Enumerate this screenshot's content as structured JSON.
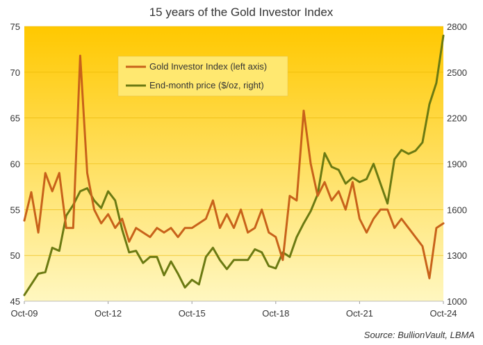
{
  "chart_data": {
    "type": "line",
    "title": "15 years of the Gold Investor Index",
    "source": "Source: BullionVault, LBMA",
    "colors": {
      "index": "#c8621a",
      "price": "#6b7a12",
      "bg_top": "#ffc800",
      "bg_bottom": "#fff7c0"
    },
    "x_ticks": [
      "Oct-09",
      "Oct-12",
      "Oct-15",
      "Oct-18",
      "Oct-21",
      "Oct-24"
    ],
    "y_left": {
      "ylim": [
        45,
        75
      ],
      "ticks": [
        45,
        50,
        55,
        60,
        65,
        70,
        75
      ]
    },
    "y_right": {
      "ylim": [
        1000,
        2800
      ],
      "ticks": [
        1000,
        1300,
        1600,
        1900,
        2200,
        2500,
        2800
      ]
    },
    "legend_position": "top-center",
    "series": [
      {
        "name": "Gold Investor Index (left axis)",
        "axis": "left",
        "x": [
          "2009-10",
          "2010-01",
          "2010-04",
          "2010-07",
          "2010-10",
          "2011-01",
          "2011-04",
          "2011-07",
          "2011-10",
          "2012-01",
          "2012-04",
          "2012-07",
          "2012-10",
          "2013-01",
          "2013-04",
          "2013-07",
          "2013-10",
          "2014-01",
          "2014-04",
          "2014-07",
          "2014-10",
          "2015-01",
          "2015-04",
          "2015-07",
          "2015-10",
          "2016-01",
          "2016-04",
          "2016-07",
          "2016-10",
          "2017-01",
          "2017-04",
          "2017-07",
          "2017-10",
          "2018-01",
          "2018-04",
          "2018-07",
          "2018-10",
          "2019-01",
          "2019-04",
          "2019-07",
          "2019-10",
          "2020-01",
          "2020-04",
          "2020-07",
          "2020-10",
          "2021-01",
          "2021-04",
          "2021-07",
          "2021-10",
          "2022-01",
          "2022-04",
          "2022-07",
          "2022-10",
          "2023-01",
          "2023-04",
          "2023-07",
          "2023-10",
          "2024-01",
          "2024-04",
          "2024-07",
          "2024-10"
        ],
        "values": [
          53.8,
          56.9,
          52.5,
          59,
          57,
          59,
          53,
          53,
          71.8,
          59,
          55,
          53.5,
          54.5,
          53,
          54,
          51.5,
          53,
          52.5,
          52,
          53,
          52.5,
          53,
          52,
          53,
          53,
          53.5,
          54,
          56,
          53,
          54.5,
          53,
          55,
          52.5,
          53,
          55,
          52.5,
          52,
          49.5,
          56.5,
          56,
          65.8,
          60,
          56.5,
          58,
          56,
          57,
          55,
          58,
          54,
          52.5,
          54,
          55,
          55,
          53,
          54,
          53,
          52,
          51,
          47.5,
          53,
          53.5
        ]
      },
      {
        "name": "End-month price ($/oz, right)",
        "axis": "right",
        "x": [
          "2009-10",
          "2010-01",
          "2010-04",
          "2010-07",
          "2010-10",
          "2011-01",
          "2011-04",
          "2011-07",
          "2011-10",
          "2012-01",
          "2012-04",
          "2012-07",
          "2012-10",
          "2013-01",
          "2013-04",
          "2013-07",
          "2013-10",
          "2014-01",
          "2014-04",
          "2014-07",
          "2014-10",
          "2015-01",
          "2015-04",
          "2015-07",
          "2015-10",
          "2016-01",
          "2016-04",
          "2016-07",
          "2016-10",
          "2017-01",
          "2017-04",
          "2017-07",
          "2017-10",
          "2018-01",
          "2018-04",
          "2018-07",
          "2018-10",
          "2019-01",
          "2019-04",
          "2019-07",
          "2019-10",
          "2020-01",
          "2020-04",
          "2020-07",
          "2020-10",
          "2021-01",
          "2021-04",
          "2021-07",
          "2021-10",
          "2022-01",
          "2022-04",
          "2022-07",
          "2022-10",
          "2023-01",
          "2023-04",
          "2023-07",
          "2023-10",
          "2024-01",
          "2024-04",
          "2024-07",
          "2024-10"
        ],
        "values": [
          1040,
          1110,
          1180,
          1190,
          1350,
          1330,
          1560,
          1630,
          1720,
          1740,
          1660,
          1610,
          1720,
          1660,
          1470,
          1320,
          1330,
          1250,
          1290,
          1290,
          1170,
          1260,
          1180,
          1090,
          1140,
          1110,
          1290,
          1350,
          1270,
          1210,
          1270,
          1270,
          1270,
          1340,
          1320,
          1230,
          1215,
          1320,
          1290,
          1420,
          1510,
          1590,
          1700,
          1970,
          1880,
          1860,
          1770,
          1810,
          1780,
          1800,
          1900,
          1770,
          1640,
          1930,
          1990,
          1965,
          1985,
          2040,
          2290,
          2430,
          2740
        ]
      }
    ]
  }
}
